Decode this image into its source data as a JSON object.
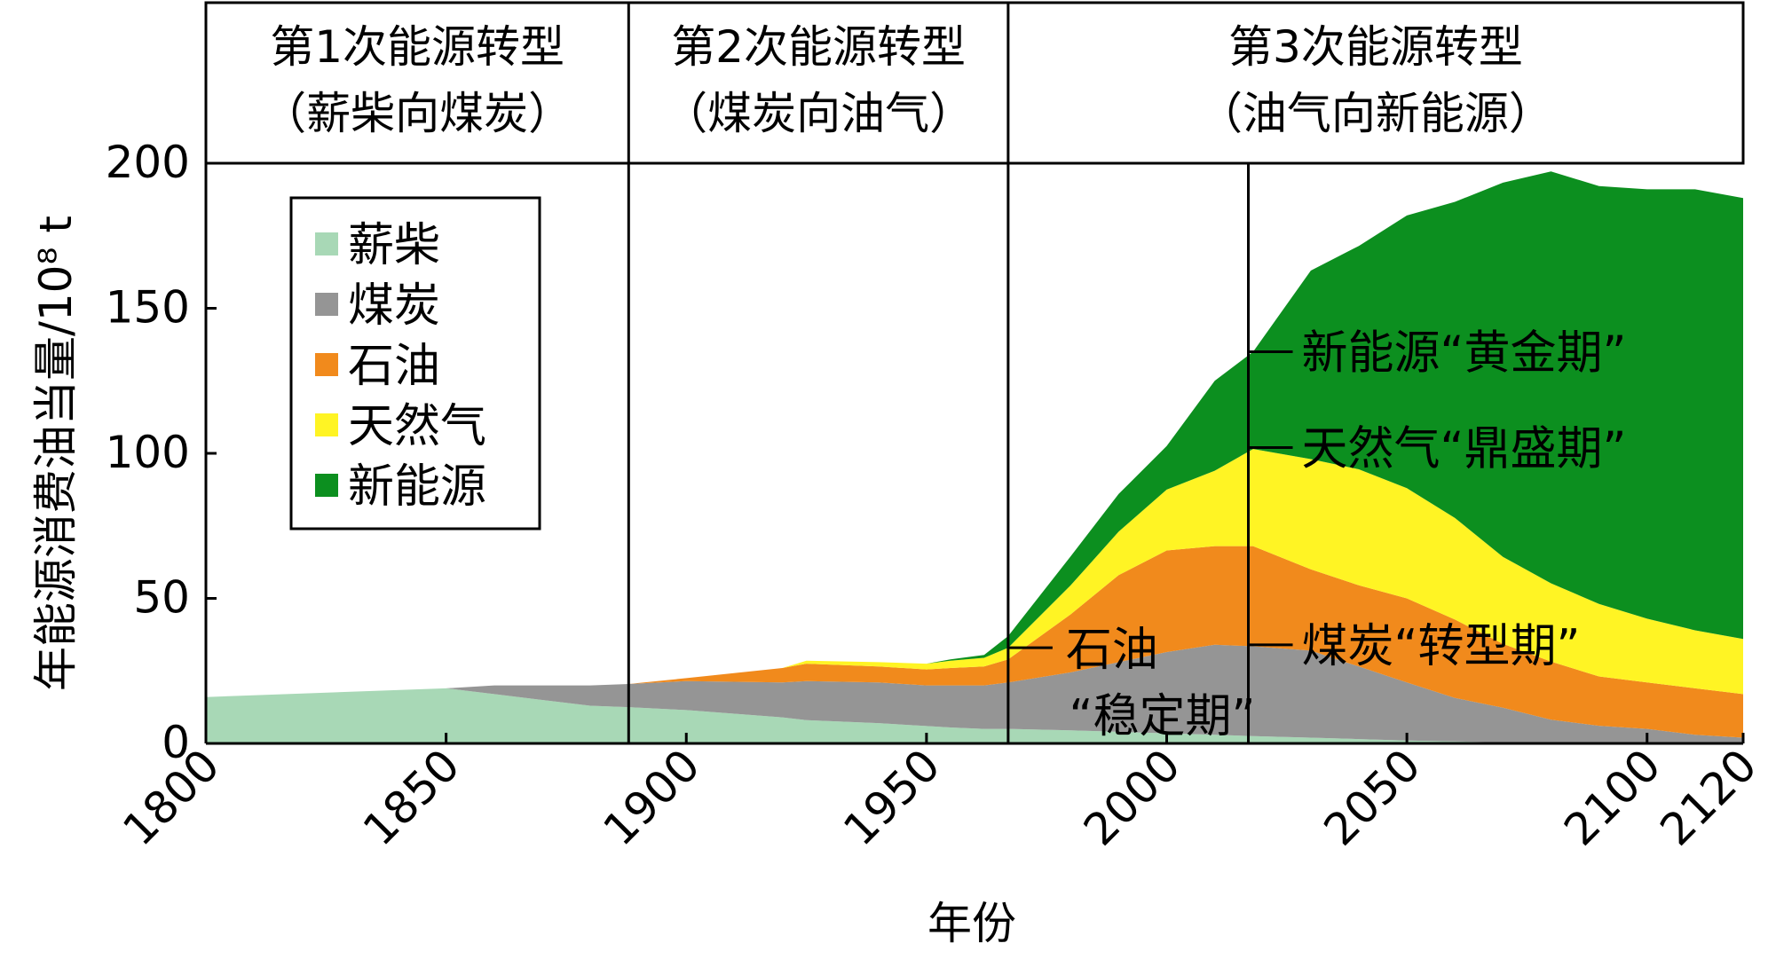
{
  "chart_data": {
    "type": "area",
    "ylabel": "年能源消费油当量/10⁸ t",
    "xlabel": "年份",
    "ylim": [
      0,
      200
    ],
    "xlim": [
      1800,
      2120
    ],
    "y_ticks": [
      0,
      50,
      100,
      150,
      200
    ],
    "x_ticks": [
      "1800",
      "1850",
      "1900",
      "1950",
      "2000",
      "2050",
      "2100",
      "2120"
    ],
    "legend": {
      "position": "top-left",
      "entries": [
        "薪柴",
        "煤炭",
        "石油",
        "天然气",
        "新能源"
      ]
    },
    "colors": {
      "薪柴": "#a8d8b6",
      "煤炭": "#959595",
      "石油": "#f18a1c",
      "天然气": "#fff424",
      "新能源": "#0c8f1f"
    },
    "x": [
      1800,
      1850,
      1860,
      1870,
      1880,
      1888,
      1900,
      1920,
      1925,
      1940,
      1950,
      1955,
      1962,
      1967,
      1980,
      1990,
      2000,
      2010,
      2018,
      2030,
      2040,
      2050,
      2060,
      2070,
      2080,
      2090,
      2100,
      2110,
      2120
    ],
    "series": [
      {
        "name": "薪柴",
        "values": [
          16,
          19,
          17,
          15,
          13,
          12.5,
          11.5,
          9,
          8,
          7,
          6,
          5.5,
          5,
          5,
          4.5,
          4,
          3.5,
          3,
          2.5,
          2,
          1.5,
          1.0,
          0.7,
          0.3,
          0.2,
          0.1,
          0,
          0,
          0
        ]
      },
      {
        "name": "煤炭",
        "values": [
          0,
          0,
          3,
          5,
          7,
          8,
          10,
          12,
          13.5,
          14,
          14,
          14.5,
          15,
          16,
          20,
          24,
          28,
          31,
          31,
          30,
          25,
          20,
          15,
          12,
          8,
          6,
          5,
          3,
          2
        ]
      },
      {
        "name": "石油",
        "values": [
          0,
          0,
          0,
          0,
          0,
          0,
          1.0,
          5,
          6,
          5.5,
          5.5,
          6,
          6.5,
          8,
          20,
          30,
          35,
          34,
          34.5,
          28,
          28,
          29,
          27,
          22,
          20,
          17,
          16,
          16,
          15
        ]
      },
      {
        "name": "天然气",
        "values": [
          0,
          0,
          0,
          0,
          0,
          0,
          0,
          0,
          1,
          1.5,
          2,
          2.5,
          3,
          4,
          10,
          15,
          21,
          26,
          33.5,
          38,
          40,
          38,
          35,
          30,
          27,
          25,
          22,
          20,
          19
        ]
      },
      {
        "name": "新能源",
        "values": [
          0,
          0,
          0,
          0,
          0,
          0,
          0,
          0,
          0,
          0,
          0,
          0.5,
          1,
          4,
          10,
          13,
          15,
          31,
          33.5,
          65,
          77,
          94,
          109,
          129,
          142,
          144,
          148,
          152,
          152
        ]
      }
    ],
    "phases": [
      {
        "line1": "第1次能源转型",
        "line2": "（薪柴向煤炭）",
        "from": 1800,
        "to": 1888
      },
      {
        "line1": "第2次能源转型",
        "line2": "（煤炭向油气）",
        "from": 1888,
        "to": 1967
      },
      {
        "line1": "第3次能源转型",
        "line2": "（油气向新能源）",
        "from": 1967,
        "to": 2120
      }
    ],
    "divider_years": [
      1888,
      1967,
      2017
    ],
    "annotations": [
      {
        "line1": "石油",
        "line2": "“稳定期”",
        "x": 1967,
        "y": 33
      },
      {
        "line1": "新能源“黄金期”",
        "x": 2017,
        "y": 135
      },
      {
        "line1": "天然气“鼎盛期”",
        "x": 2017,
        "y": 102
      },
      {
        "line1": "煤炭“转型期”",
        "x": 2017,
        "y": 34
      }
    ]
  }
}
